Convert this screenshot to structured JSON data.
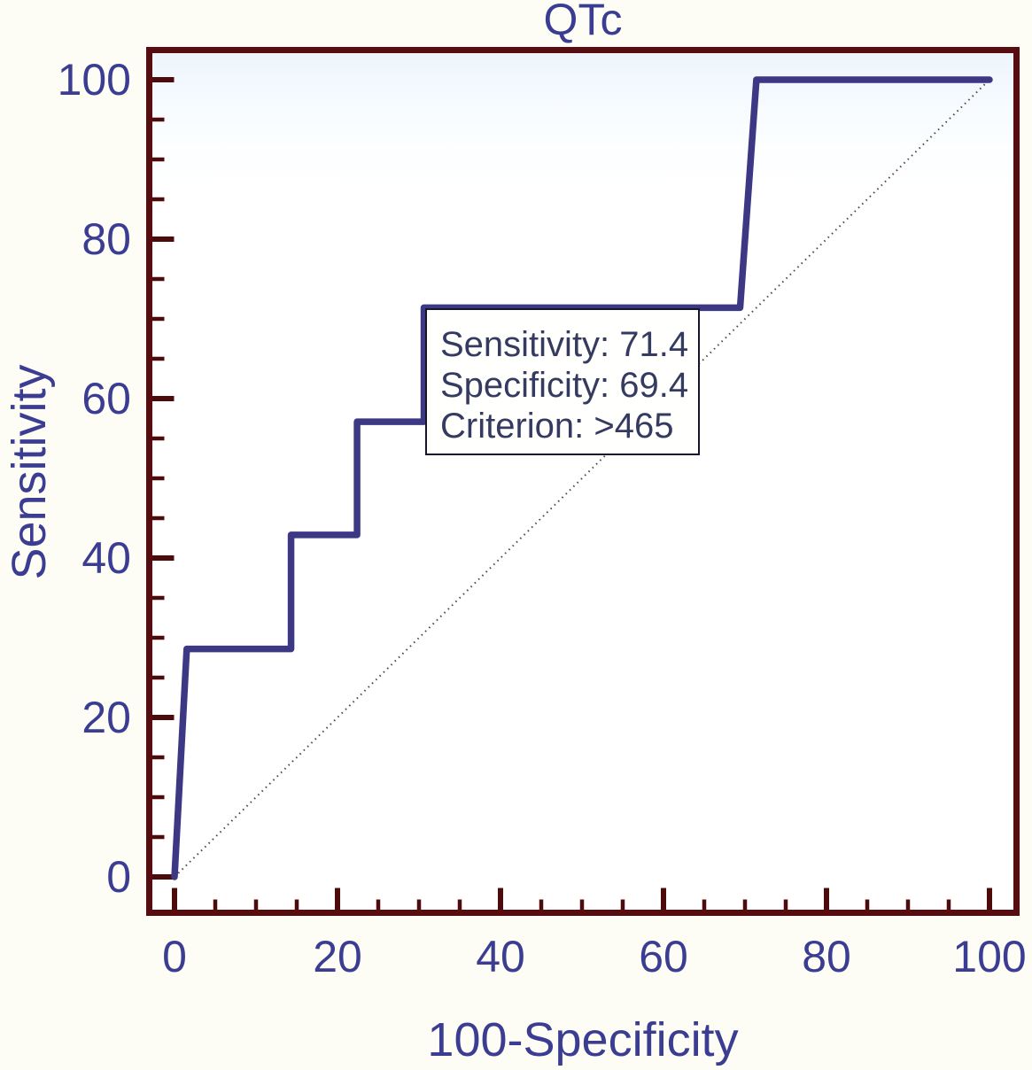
{
  "chart_data": {
    "type": "line",
    "subtype": "roc_curve",
    "title": "QTc",
    "xlabel": "100-Specificity",
    "ylabel": "Sensitivity",
    "xlim": [
      0,
      100
    ],
    "ylim": [
      0,
      100
    ],
    "x_ticks": [
      0,
      20,
      40,
      60,
      80,
      100
    ],
    "y_ticks": [
      0,
      20,
      40,
      60,
      80,
      100
    ],
    "x_tick_labels": [
      "0",
      "20",
      "40",
      "60",
      "80",
      "100"
    ],
    "y_tick_labels": [
      "0",
      "20",
      "40",
      "60",
      "80",
      "100"
    ],
    "minor_tick_step": 5,
    "grid": false,
    "legend_position": "none",
    "series": [
      {
        "name": "ROC curve",
        "style": "solid-step",
        "color": "#3d3884",
        "points": [
          [
            0,
            0
          ],
          [
            1.5,
            28.6
          ],
          [
            14.3,
            28.6
          ],
          [
            14.3,
            42.9
          ],
          [
            22.4,
            42.9
          ],
          [
            22.4,
            57.1
          ],
          [
            30.6,
            57.1
          ],
          [
            30.6,
            71.4
          ],
          [
            69.4,
            71.4
          ],
          [
            71.4,
            100
          ],
          [
            100,
            100
          ]
        ]
      },
      {
        "name": "Reference diagonal",
        "style": "dotted",
        "color": "#544240",
        "points": [
          [
            0,
            0
          ],
          [
            100,
            100
          ]
        ]
      }
    ],
    "operating_point": {
      "x": 30.6,
      "y": 71.4,
      "sensitivity": 71.4,
      "specificity": 69.4,
      "criterion": ">465"
    }
  },
  "annotation": {
    "lines": [
      "Sensitivity: 71.4",
      "Specificity: 69.4",
      "Criterion: >465"
    ]
  },
  "colors": {
    "axis_text": "#3b3d92",
    "frame": "#570c10",
    "tick": "#4d0b0b",
    "curve": "#3d3884",
    "diagonal": "#544240",
    "annotation_text": "#353a60",
    "annotation_border": "#16162a",
    "plot_top_tint": "#edf5fc",
    "page_background": "#fdfcf5"
  }
}
